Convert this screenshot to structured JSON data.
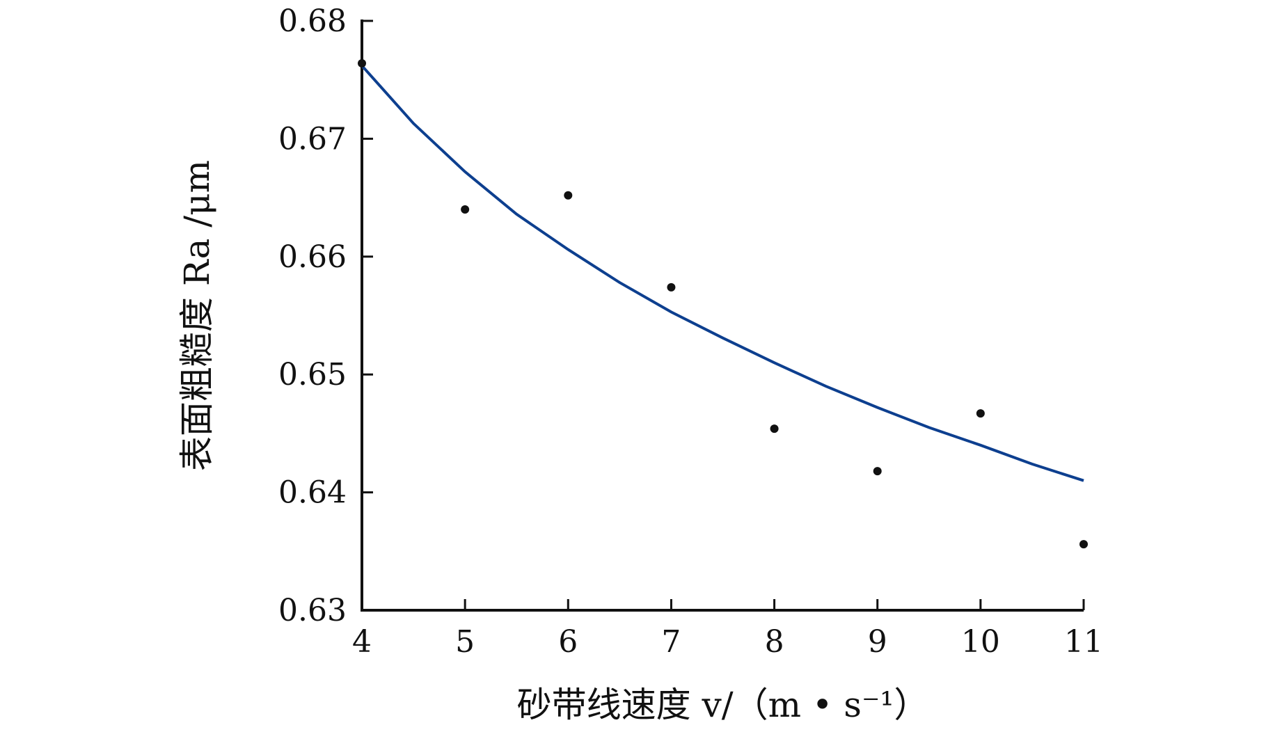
{
  "chart_data": {
    "type": "scatter",
    "xlabel": "砂带线速度 v/（m • s⁻¹）",
    "ylabel": "表面粗糙度 Ra /μm",
    "xlim": [
      4,
      11
    ],
    "ylim": [
      0.63,
      0.68
    ],
    "x_ticks": [
      4,
      5,
      6,
      7,
      8,
      9,
      10,
      11
    ],
    "y_ticks": [
      "0.63",
      "0.64",
      "0.65",
      "0.66",
      "0.67",
      "0.68"
    ],
    "grid": false,
    "series": [
      {
        "kind": "points",
        "x": [
          4,
          5,
          6,
          7,
          8,
          9,
          10,
          11
        ],
        "y": [
          0.6764,
          0.664,
          0.6652,
          0.6574,
          0.6454,
          0.6418,
          0.6467,
          0.6356
        ]
      },
      {
        "kind": "fit-curve",
        "x": [
          4,
          4.5,
          5,
          5.5,
          6,
          6.5,
          7,
          7.5,
          8,
          8.5,
          9,
          9.5,
          10,
          10.5,
          11
        ],
        "y": [
          0.6762,
          0.6713,
          0.6672,
          0.6636,
          0.6606,
          0.6578,
          0.6553,
          0.6531,
          0.651,
          0.649,
          0.6472,
          0.6455,
          0.644,
          0.6424,
          0.641
        ]
      }
    ],
    "colors": {
      "curve": "#0d3f8f",
      "points": "#111111",
      "axis": "#111111"
    }
  }
}
